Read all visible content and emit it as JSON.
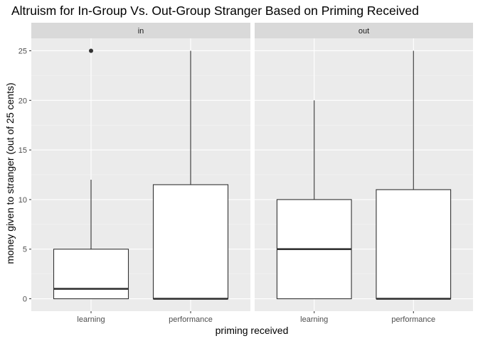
{
  "chart_data": {
    "type": "boxplot",
    "title": "Altruism for In-Group Vs. Out-Group Stranger Based on Priming Received",
    "xlabel": "priming received",
    "ylabel": "money given to stranger (out of 25 cents)",
    "ylim": [
      -1.25,
      26.25
    ],
    "yticks": [
      0,
      5,
      10,
      15,
      20,
      25
    ],
    "categories": [
      "learning",
      "performance"
    ],
    "facets": [
      {
        "label": "in",
        "boxes": [
          {
            "category": "learning",
            "min": 0,
            "q1": 0,
            "median": 1,
            "q3": 5,
            "max": 12,
            "outliers": [
              25
            ]
          },
          {
            "category": "performance",
            "min": 0,
            "q1": 0,
            "median": 0,
            "q3": 11.5,
            "max": 25,
            "outliers": []
          }
        ]
      },
      {
        "label": "out",
        "boxes": [
          {
            "category": "learning",
            "min": 0,
            "q1": 0,
            "median": 5,
            "q3": 10,
            "max": 20,
            "outliers": []
          },
          {
            "category": "performance",
            "min": 0,
            "q1": 0,
            "median": 0,
            "q3": 11,
            "max": 25,
            "outliers": []
          }
        ]
      }
    ],
    "grid": true,
    "colors": {
      "panel_bg": "#ebebeb",
      "strip_bg": "#d9d9d9",
      "grid_major": "#ffffff",
      "grid_minor": "#f5f5f5",
      "box_fill": "#ffffff",
      "box_line": "#333333"
    }
  }
}
